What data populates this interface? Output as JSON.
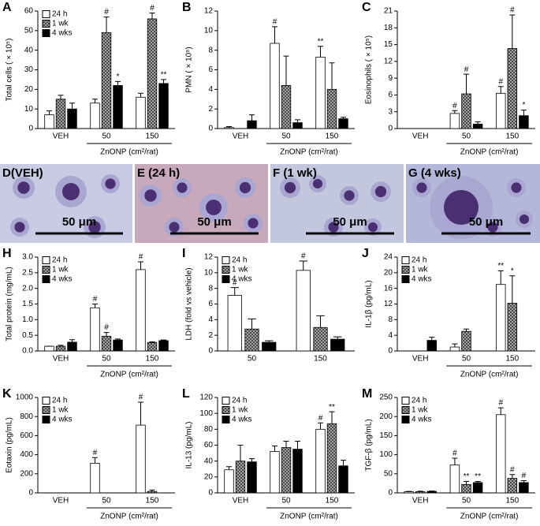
{
  "chart_data": [
    {
      "type": "bar",
      "panel": "A",
      "ylabel": "Total cells ( × 10⁵)",
      "xlabel": "ZnONP (cm²/rat)",
      "categories": [
        "VEH",
        "50",
        "150"
      ],
      "ylim": [
        0,
        60
      ],
      "yticks": [
        0,
        10,
        20,
        30,
        40,
        50,
        60
      ],
      "legend": "upper left",
      "series": [
        {
          "name": "24 h",
          "color": "#ffffff",
          "values": [
            7,
            13,
            16
          ],
          "errors": [
            2,
            2,
            2
          ],
          "annotations": [
            null,
            null,
            null
          ]
        },
        {
          "name": "1 wk",
          "color": "#888888",
          "pattern": "crosshatch",
          "values": [
            15,
            49,
            56
          ],
          "errors": [
            2,
            8,
            3
          ],
          "annotations": [
            null,
            "#",
            "#"
          ]
        },
        {
          "name": "4 wks",
          "color": "#000000",
          "values": [
            10,
            22,
            23
          ],
          "errors": [
            3,
            2,
            2
          ],
          "annotations": [
            null,
            "*",
            "**"
          ]
        }
      ]
    },
    {
      "type": "bar",
      "panel": "B",
      "ylabel": "PMN ( × 10⁵)",
      "xlabel": "ZnONP (cm²/rat)",
      "categories": [
        "VEH",
        "50",
        "150"
      ],
      "ylim": [
        0,
        12
      ],
      "yticks": [
        0,
        2,
        4,
        6,
        8,
        10,
        12
      ],
      "series": [
        {
          "color": "#ffffff",
          "values": [
            0.1,
            8.7,
            7.3
          ],
          "errors": [
            0.1,
            1.7,
            1.1
          ],
          "annotations": [
            null,
            "#",
            "**"
          ]
        },
        {
          "color": "#888888",
          "pattern": "crosshatch",
          "values": [
            0,
            4.4,
            4
          ],
          "errors": [
            0,
            3,
            2.7
          ],
          "annotations": [
            null,
            null,
            null
          ]
        },
        {
          "color": "#000000",
          "values": [
            0.8,
            0.6,
            1
          ],
          "errors": [
            0.6,
            0.3,
            0.15
          ],
          "annotations": [
            null,
            null,
            null
          ]
        }
      ]
    },
    {
      "type": "bar",
      "panel": "C",
      "ylabel": "Eosinophils ( × 10⁵)",
      "xlabel": "ZnONP (cm²/rat)",
      "categories": [
        "VEH",
        "50",
        "150"
      ],
      "ylim": [
        0,
        21
      ],
      "yticks": [
        0,
        3,
        6,
        9,
        12,
        15,
        18,
        21
      ],
      "series": [
        {
          "color": "#ffffff",
          "values": [
            0,
            2.7,
            6.3
          ],
          "errors": [
            0,
            0.5,
            1.2
          ],
          "annotations": [
            null,
            "#",
            "#"
          ]
        },
        {
          "color": "#888888",
          "pattern": "crosshatch",
          "values": [
            0,
            6.2,
            14.3
          ],
          "errors": [
            0,
            3.5,
            6
          ],
          "annotations": [
            null,
            "#",
            "#"
          ]
        },
        {
          "color": "#000000",
          "values": [
            0,
            0.8,
            2.3
          ],
          "errors": [
            0,
            0.4,
            1
          ],
          "annotations": [
            null,
            null,
            "*"
          ]
        }
      ]
    },
    {
      "type": "bar",
      "panel": "H",
      "ylabel": "Total protein (mg/mL)",
      "xlabel": "ZnONP (cm²/rat)",
      "categories": [
        "VEH",
        "50",
        "150"
      ],
      "ylim": [
        0,
        3
      ],
      "yticks": [
        {
          "value": 0,
          "label": "0.0"
        },
        0.5,
        {
          "value": 1,
          "label": "1.0"
        },
        1.5,
        {
          "value": 2,
          "label": "2.0"
        },
        2.5,
        {
          "value": 3,
          "label": "3.0"
        }
      ],
      "legend": "upper left",
      "series": [
        {
          "name": "24 h",
          "color": "#ffffff",
          "values": [
            0.15,
            1.38,
            2.6
          ],
          "errors": [
            0,
            0.12,
            0.25
          ],
          "annotations": [
            null,
            "#",
            "#"
          ]
        },
        {
          "name": "1 wk",
          "color": "#888888",
          "pattern": "crosshatch",
          "values": [
            0.15,
            0.47,
            0.27
          ],
          "errors": [
            0.03,
            0.12,
            0.02
          ],
          "annotations": [
            null,
            "#",
            null
          ]
        },
        {
          "name": "4 wks",
          "color": "#000000",
          "values": [
            0.28,
            0.35,
            0.33
          ],
          "errors": [
            0.08,
            0.03,
            0.02
          ],
          "annotations": [
            null,
            null,
            null
          ]
        }
      ]
    },
    {
      "type": "bar",
      "panel": "I",
      "ylabel": "LDH (fold vs vehicle)",
      "categories": [
        "50",
        "150"
      ],
      "ylim": [
        0,
        12
      ],
      "yticks": [
        0,
        2,
        4,
        6,
        8,
        10,
        12
      ],
      "legend": "upper left",
      "series": [
        {
          "name": "24 h",
          "color": "#ffffff",
          "values": [
            7.1,
            10.3
          ],
          "errors": [
            1,
            1.2
          ],
          "annotations": [
            "#",
            "#"
          ]
        },
        {
          "name": "1 wk",
          "color": "#888888",
          "pattern": "crosshatch",
          "values": [
            2.8,
            3
          ],
          "errors": [
            1.3,
            1.5
          ],
          "annotations": [
            null,
            null
          ]
        },
        {
          "name": "4 wks",
          "color": "#000000",
          "values": [
            1.1,
            1.5
          ],
          "errors": [
            0.2,
            0.3
          ],
          "annotations": [
            null,
            null
          ]
        }
      ]
    },
    {
      "type": "bar",
      "panel": "J",
      "ylabel": "IL-1β (pg/mL)",
      "xlabel": "ZnONP (cm²/rat)",
      "categories": [
        "VEH",
        "50",
        "150"
      ],
      "ylim": [
        0,
        24
      ],
      "yticks": [
        0,
        4,
        8,
        12,
        16,
        20,
        24
      ],
      "legend": "upper left",
      "series": [
        {
          "name": "24 h",
          "color": "#ffffff",
          "values": [
            0,
            1,
            17
          ],
          "errors": [
            0,
            0.8,
            3.5
          ],
          "annotations": [
            null,
            null,
            "**"
          ]
        },
        {
          "name": "1 wk",
          "color": "#888888",
          "pattern": "crosshatch",
          "values": [
            0,
            5,
            12.2
          ],
          "errors": [
            0,
            0.6,
            7
          ],
          "annotations": [
            null,
            null,
            "*"
          ]
        },
        {
          "name": "4 wks",
          "color": "#000000",
          "values": [
            2.7,
            0,
            0
          ],
          "errors": [
            0.8,
            0,
            0
          ],
          "annotations": [
            null,
            null,
            null
          ]
        }
      ]
    },
    {
      "type": "bar",
      "panel": "K",
      "ylabel": "Eotaxin (pg/mL)",
      "xlabel": "ZnONP (cm²/rat)",
      "categories": [
        "VEH",
        "50",
        "150"
      ],
      "ylim": [
        0,
        1000
      ],
      "yticks": [
        0,
        200,
        400,
        600,
        800,
        1000
      ],
      "legend": "upper left",
      "series": [
        {
          "name": "24 h",
          "color": "#ffffff",
          "values": [
            0,
            310,
            710
          ],
          "errors": [
            0,
            60,
            240
          ],
          "annotations": [
            null,
            "#",
            "#"
          ]
        },
        {
          "name": "1 wk",
          "color": "#888888",
          "pattern": "crosshatch",
          "values": [
            0,
            0,
            15
          ],
          "errors": [
            0,
            0,
            15
          ],
          "annotations": [
            null,
            null,
            null
          ]
        },
        {
          "name": "4 wks",
          "color": "#000000",
          "values": [
            0,
            0,
            0
          ],
          "errors": [
            0,
            0,
            0
          ],
          "annotations": [
            null,
            null,
            null
          ]
        }
      ]
    },
    {
      "type": "bar",
      "panel": "L",
      "ylabel": "IL-13 (pg/mL)",
      "xlabel": "ZnONP (cm²/rat)",
      "categories": [
        "VEH",
        "50",
        "150"
      ],
      "ylim": [
        0,
        120
      ],
      "yticks": [
        0,
        20,
        40,
        60,
        80,
        100,
        120
      ],
      "legend": "upper left",
      "series": [
        {
          "name": "24 h",
          "color": "#ffffff",
          "values": [
            29,
            52,
            80
          ],
          "errors": [
            4,
            7,
            8
          ],
          "annotations": [
            null,
            null,
            "#"
          ]
        },
        {
          "name": "1 wk",
          "color": "#888888",
          "pattern": "crosshatch",
          "values": [
            40,
            57,
            87
          ],
          "errors": [
            20,
            8,
            15
          ],
          "annotations": [
            null,
            null,
            "**"
          ]
        },
        {
          "name": "4 wks",
          "color": "#000000",
          "values": [
            39,
            55,
            34
          ],
          "errors": [
            4,
            10,
            7
          ],
          "annotations": [
            null,
            null,
            null
          ]
        }
      ]
    },
    {
      "type": "bar",
      "panel": "M",
      "ylabel": "TGF-β (pg/mL)",
      "xlabel": "ZnONP (cm²/rat)",
      "categories": [
        "VEH",
        "50",
        "150"
      ],
      "ylim": [
        0,
        250
      ],
      "yticks": [
        0,
        50,
        100,
        150,
        200,
        250
      ],
      "legend": "upper left",
      "series": [
        {
          "name": "24 h",
          "color": "#ffffff",
          "values": [
            3,
            73,
            205
          ],
          "errors": [
            1,
            18,
            18
          ],
          "annotations": [
            null,
            "#",
            "#"
          ]
        },
        {
          "name": "1 wk",
          "color": "#888888",
          "pattern": "crosshatch",
          "values": [
            3,
            22,
            38
          ],
          "errors": [
            1.5,
            8,
            10
          ],
          "annotations": [
            null,
            "**",
            "#"
          ]
        },
        {
          "name": "4 wks",
          "color": "#000000",
          "values": [
            4,
            27,
            27
          ],
          "errors": [
            1,
            3,
            5
          ],
          "annotations": [
            null,
            "**",
            "#"
          ]
        }
      ]
    }
  ],
  "micrographs": [
    {
      "panel": "D(VEH)",
      "scale_bar": "50 μm"
    },
    {
      "panel": "E (24 h)",
      "scale_bar": "50 μm"
    },
    {
      "panel": "F (1 wk)",
      "scale_bar": "50 μm"
    },
    {
      "panel": "G (4 wks)",
      "scale_bar": "50 μm"
    }
  ]
}
